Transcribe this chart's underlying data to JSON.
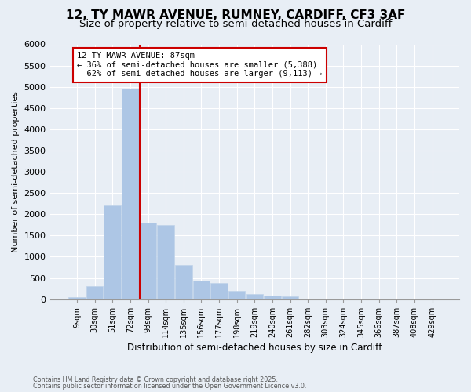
{
  "title_line1": "12, TY MAWR AVENUE, RUMNEY, CARDIFF, CF3 3AF",
  "title_line2": "Size of property relative to semi-detached houses in Cardiff",
  "xlabel": "Distribution of semi-detached houses by size in Cardiff",
  "ylabel": "Number of semi-detached properties",
  "footer_line1": "Contains HM Land Registry data © Crown copyright and database right 2025.",
  "footer_line2": "Contains public sector information licensed under the Open Government Licence v3.0.",
  "bar_labels": [
    "9sqm",
    "30sqm",
    "51sqm",
    "72sqm",
    "93sqm",
    "114sqm",
    "135sqm",
    "156sqm",
    "177sqm",
    "198sqm",
    "219sqm",
    "240sqm",
    "261sqm",
    "282sqm",
    "303sqm",
    "324sqm",
    "345sqm",
    "366sqm",
    "387sqm",
    "408sqm",
    "429sqm"
  ],
  "bar_values": [
    50,
    310,
    2200,
    4950,
    1800,
    1750,
    800,
    440,
    380,
    200,
    130,
    90,
    60,
    20,
    10,
    5,
    3,
    2,
    1,
    1,
    1
  ],
  "bar_color": "#adc6e5",
  "bar_edge_color": "#c0d4ea",
  "property_label": "12 TY MAWR AVENUE: 87sqm",
  "smaller_pct": 36,
  "smaller_count": 5388,
  "larger_pct": 62,
  "larger_count": 9113,
  "vline_color": "#cc0000",
  "vline_x_index": 4,
  "ylim": [
    0,
    6000
  ],
  "yticks": [
    0,
    500,
    1000,
    1500,
    2000,
    2500,
    3000,
    3500,
    4000,
    4500,
    5000,
    5500,
    6000
  ],
  "bg_color": "#e8eef5",
  "grid_color": "#d0d8e4",
  "title_fontsize": 11,
  "subtitle_fontsize": 9.5
}
